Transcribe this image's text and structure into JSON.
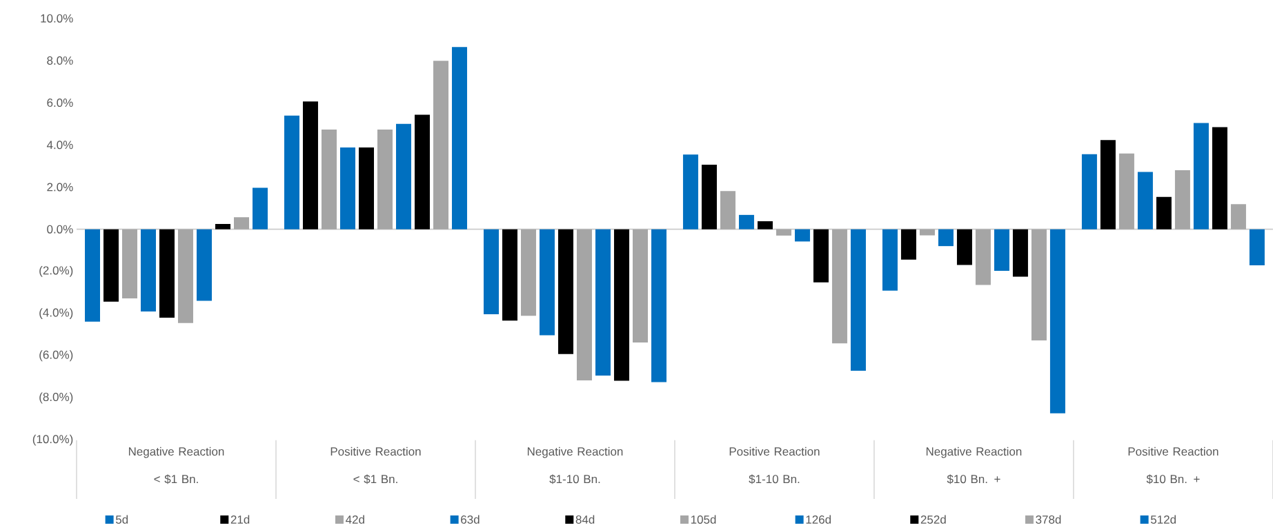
{
  "chart_data": {
    "type": "bar",
    "categories": [
      "Negative Reaction < $1 Bn.",
      "Positive Reaction < $1 Bn.",
      "Negative Reaction $1-10 Bn.",
      "Positive Reaction $1-10 Bn.",
      "Negative Reaction $10 Bn. +",
      "Positive Reaction $10 Bn. +"
    ],
    "series": [
      {
        "name": "5d",
        "color": "#0070c0",
        "values": [
          -4.38,
          5.39,
          -4.03,
          3.54,
          -2.91,
          3.56
        ]
      },
      {
        "name": "21d",
        "color": "#000000",
        "values": [
          -3.43,
          6.06,
          -4.33,
          3.06,
          -1.44,
          4.23
        ]
      },
      {
        "name": "42d",
        "color": "#a5a5a5",
        "values": [
          -3.28,
          4.73,
          -4.1,
          1.81,
          -0.29,
          3.59
        ]
      },
      {
        "name": "63d",
        "color": "#0070c0",
        "values": [
          -3.9,
          3.88,
          -5.03,
          0.68,
          -0.8,
          2.72
        ]
      },
      {
        "name": "84d",
        "color": "#000000",
        "values": [
          -4.19,
          3.88,
          -5.92,
          0.38,
          -1.69,
          1.53
        ]
      },
      {
        "name": "105d",
        "color": "#a5a5a5",
        "values": [
          -4.45,
          4.73,
          -7.17,
          -0.3,
          -2.64,
          2.8
        ]
      },
      {
        "name": "126d",
        "color": "#0070c0",
        "values": [
          -3.39,
          5.0,
          -6.94,
          -0.58,
          -1.97,
          5.04
        ]
      },
      {
        "name": "252d",
        "color": "#000000",
        "values": [
          0.25,
          5.43,
          -7.18,
          -2.52,
          -2.25,
          4.84
        ]
      },
      {
        "name": "378d",
        "color": "#a5a5a5",
        "values": [
          0.57,
          7.99,
          -5.37,
          -5.41,
          -5.27,
          1.19
        ]
      },
      {
        "name": "512d",
        "color": "#0070c0",
        "values": [
          1.97,
          8.64,
          -7.25,
          -6.71,
          -8.73,
          -1.71
        ]
      }
    ],
    "ylim": [
      -10,
      10
    ],
    "yticks": [
      {
        "value": -10,
        "label": "(10.0%)"
      },
      {
        "value": -8,
        "label": "(8.0%)"
      },
      {
        "value": -6,
        "label": "(6.0%)"
      },
      {
        "value": -4,
        "label": "(4.0%)"
      },
      {
        "value": -2,
        "label": "(2.0%)"
      },
      {
        "value": 0,
        "label": "0.0%"
      },
      {
        "value": 2,
        "label": "2.0%"
      },
      {
        "value": 4,
        "label": "4.0%"
      },
      {
        "value": 6,
        "label": "6.0%"
      },
      {
        "value": 8,
        "label": "8.0%"
      },
      {
        "value": 10,
        "label": "10.0%"
      }
    ],
    "legend": "bottom"
  }
}
